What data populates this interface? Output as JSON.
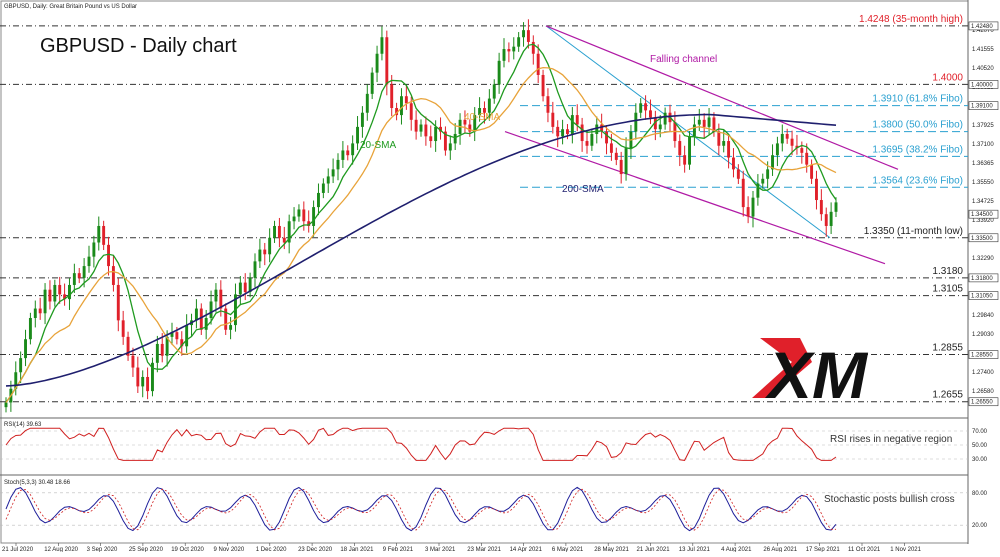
{
  "chart_title": "GBPUSD - Daily chart",
  "header_label": "GBPUSD, Daily:  Great Britain Pound vs US Dollar",
  "rsi_label": "RSI(14) 39.63",
  "stoch_label": "Stoch(5,3,3) 30.48 18.66",
  "colors": {
    "up": "#1a8a1a",
    "down": "#e0202a",
    "sma20": "#1f9a1f",
    "sma40": "#e8a33a",
    "sma200": "#1f1f6e",
    "channel": "#b01aa5",
    "fibo": "#2aa0d0",
    "level": "#333333",
    "high_label": "#e0202a",
    "fibo_label": "#2aa0d0"
  },
  "logo_text": "XM",
  "chart_data": {
    "type": "candlestick",
    "instrument": "GBPUSD",
    "timeframe": "Daily",
    "x_tick_labels": [
      "21 Jul 2020",
      "12 Aug 2020",
      "3 Sep 2020",
      "25 Sep 2020",
      "19 Oct 2020",
      "9 Nov 2020",
      "1 Dec 2020",
      "23 Dec 2020",
      "18 Jan 2021",
      "9 Feb 2021",
      "3 Mar 2021",
      "23 Mar 2021",
      "14 Apr 2021",
      "6 May 2021",
      "28 May 2021",
      "21 Jun 2021",
      "13 Jul 2021",
      "4 Aug 2021",
      "26 Aug 2021",
      "17 Sep 2021",
      "11 Oct 2021",
      "1 Nov 2021"
    ],
    "y_tick_labels": [
      "1.42070",
      "1.41555",
      "1.40520",
      "1.39625",
      "1.38850",
      "1.37925",
      "1.37100",
      "1.36365",
      "1.35550",
      "1.34725",
      "1.33920",
      "1.33100",
      "1.32290",
      "1.31475",
      "1.30650",
      "1.29840",
      "1.29030",
      "1.28215",
      "1.27400",
      "1.26580"
    ],
    "ylim": [
      1.262,
      1.429
    ],
    "price_markers": [
      "1.42480",
      "1.40000",
      "1.39100",
      "1.34500",
      "1.33500",
      "1.31800",
      "1.31050",
      "1.28550",
      "1.26550"
    ],
    "closes": [
      1.2652,
      1.271,
      1.278,
      1.284,
      1.292,
      1.301,
      1.305,
      1.303,
      1.313,
      1.308,
      1.315,
      1.311,
      1.309,
      1.315,
      1.32,
      1.318,
      1.323,
      1.327,
      1.333,
      1.34,
      1.332,
      1.323,
      1.315,
      1.3,
      1.293,
      1.285,
      1.28,
      1.272,
      1.276,
      1.27,
      1.282,
      1.29,
      1.285,
      1.293,
      1.295,
      1.292,
      1.289,
      1.298,
      1.3,
      1.305,
      1.296,
      1.301,
      1.308,
      1.313,
      1.305,
      1.296,
      1.298,
      1.311,
      1.316,
      1.312,
      1.318,
      1.325,
      1.33,
      1.328,
      1.335,
      1.34,
      1.335,
      1.333,
      1.342,
      1.344,
      1.347,
      1.342,
      1.34,
      1.348,
      1.354,
      1.358,
      1.361,
      1.364,
      1.368,
      1.372,
      1.37,
      1.375,
      1.382,
      1.388,
      1.396,
      1.405,
      1.413,
      1.42,
      1.4,
      1.39,
      1.387,
      1.395,
      1.392,
      1.385,
      1.38,
      1.383,
      1.378,
      1.376,
      1.382,
      1.38,
      1.372,
      1.375,
      1.379,
      1.385,
      1.383,
      1.38,
      1.387,
      1.39,
      1.388,
      1.394,
      1.4,
      1.41,
      1.415,
      1.414,
      1.416,
      1.42,
      1.423,
      1.418,
      1.413,
      1.404,
      1.395,
      1.388,
      1.382,
      1.378,
      1.381,
      1.379,
      1.387,
      1.383,
      1.376,
      1.374,
      1.379,
      1.383,
      1.38,
      1.375,
      1.371,
      1.368,
      1.362,
      1.373,
      1.38,
      1.388,
      1.392,
      1.389,
      1.386,
      1.381,
      1.383,
      1.388,
      1.384,
      1.376,
      1.37,
      1.366,
      1.378,
      1.383,
      1.385,
      1.382,
      1.386,
      1.38,
      1.374,
      1.376,
      1.369,
      1.364,
      1.36,
      1.348,
      1.344,
      1.352,
      1.358,
      1.36,
      1.364,
      1.37,
      1.375,
      1.379,
      1.377,
      1.374,
      1.373,
      1.371,
      1.366,
      1.36,
      1.351,
      1.345,
      1.34,
      1.346,
      1.35
    ],
    "sma20_label": "20-SMA",
    "sma40_label": "40-SMA",
    "sma200_label": "200-SMA",
    "channel_label": "Falling channel",
    "levels": [
      {
        "price": 1.4248,
        "label": "1.4248 (35-month high)",
        "kind": "high"
      },
      {
        "price": 1.4,
        "label": "1.4000",
        "kind": "key"
      },
      {
        "price": 1.391,
        "label": "1.3910 (61.8% Fibo)",
        "kind": "fibo"
      },
      {
        "price": 1.38,
        "label": "1.3800 (50.0% Fibo)",
        "kind": "fibo"
      },
      {
        "price": 1.3695,
        "label": "1.3695 (38.2% Fibo)",
        "kind": "fibo"
      },
      {
        "price": 1.3564,
        "label": "1.3564 (23.6% Fibo)",
        "kind": "fibo"
      },
      {
        "price": 1.335,
        "label": "1.3350 (11-month low)",
        "kind": "support"
      },
      {
        "price": 1.318,
        "label": "1.3180",
        "kind": "support"
      },
      {
        "price": 1.3105,
        "label": "1.3105",
        "kind": "support"
      },
      {
        "price": 1.2855,
        "label": "1.2855",
        "kind": "support"
      },
      {
        "price": 1.2655,
        "label": "1.2655",
        "kind": "support"
      }
    ],
    "rsi": {
      "label": "RSI(14) 39.63",
      "ticks": [
        "70.00",
        "50.00",
        "30.00"
      ],
      "annotation": "RSI rises in negative region"
    },
    "stochastic": {
      "label": "Stoch(5,3,3) 30.48 18.66",
      "ticks": [
        "80.00",
        "20.00"
      ],
      "annotation": "Stochastic posts bullish cross"
    }
  }
}
